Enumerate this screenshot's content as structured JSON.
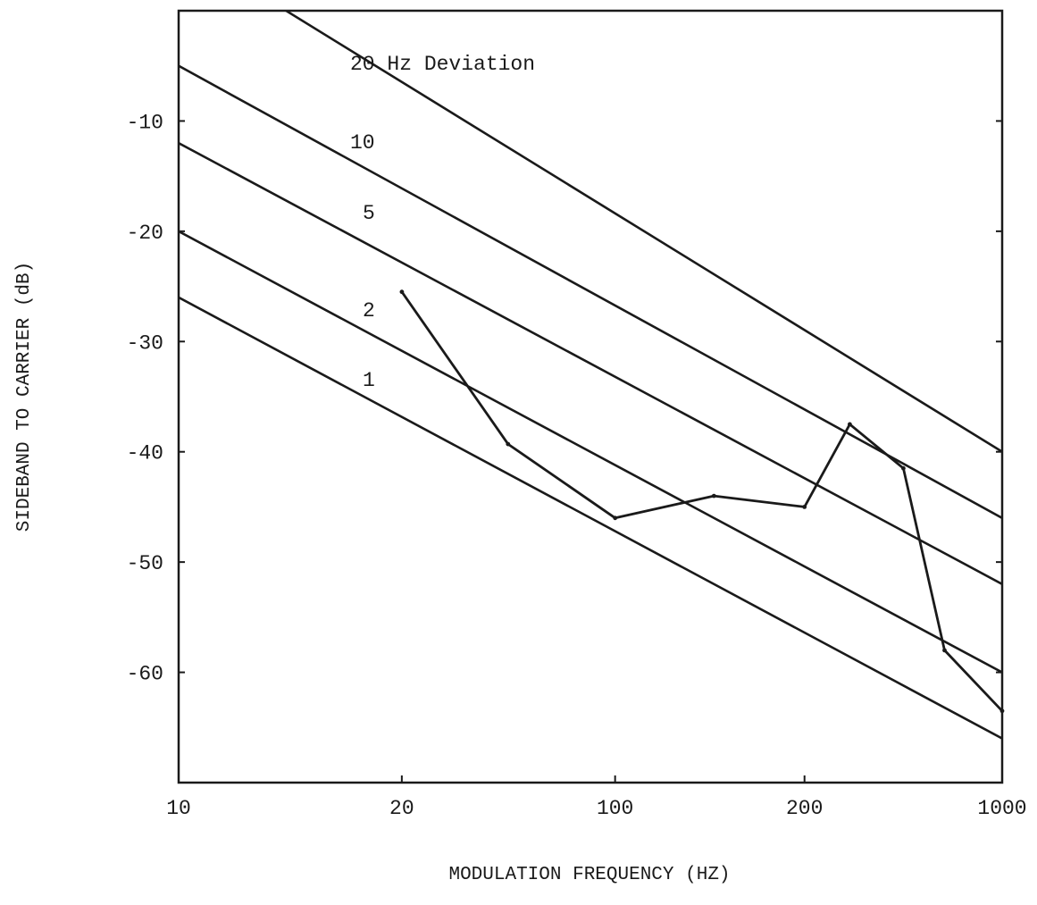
{
  "chart_data": {
    "type": "line",
    "title": "",
    "xlabel": "MODULATION FREQUENCY (HZ)",
    "ylabel": "SIDEBAND TO CARRIER (dB)",
    "x_tick_labels": [
      "10",
      "20",
      "100",
      "200",
      "1000"
    ],
    "y_tick_labels": [
      "-10",
      "-20",
      "-30",
      "-40",
      "-50",
      "-60"
    ],
    "y_ticks": [
      -10,
      -20,
      -30,
      -40,
      -50,
      -60
    ],
    "ylim": [
      -70,
      0
    ],
    "grid": false,
    "reference_series": [
      {
        "label": "20 Hz Deviation",
        "x": [
          10,
          1000
        ],
        "y": [
          6,
          -40
        ]
      },
      {
        "label": "10",
        "x": [
          10,
          1000
        ],
        "y": [
          -5,
          -46
        ]
      },
      {
        "label": "5",
        "x": [
          10,
          1000
        ],
        "y": [
          -12,
          -52
        ]
      },
      {
        "label": "2",
        "x": [
          10,
          1000
        ],
        "y": [
          -20,
          -60
        ]
      },
      {
        "label": "1",
        "x": [
          10,
          1000
        ],
        "y": [
          -26,
          -66
        ]
      }
    ],
    "measured_series": {
      "x_tick_position": [
        2.71,
        4.0,
        5.3,
        6.5,
        7.6,
        8.15,
        8.8,
        9.3,
        10.0
      ],
      "y": [
        -25.5,
        -39.3,
        -46.0,
        -44.0,
        -45.0,
        -37.5,
        -41.5,
        -58.0,
        -63.5
      ]
    }
  }
}
